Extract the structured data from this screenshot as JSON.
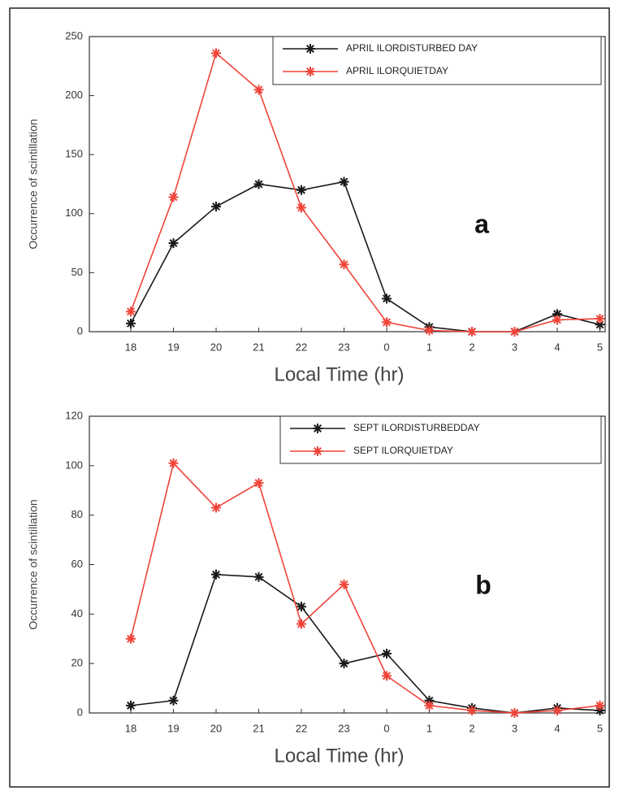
{
  "chart_data": [
    {
      "type": "line",
      "annotation": "a",
      "x_label": "Local Time (hr)",
      "y_label": "Occurrence of scintillation",
      "categories": [
        "18",
        "19",
        "20",
        "21",
        "22",
        "23",
        "0",
        "1",
        "2",
        "3",
        "4",
        "5"
      ],
      "ylim": [
        0,
        250
      ],
      "yticks": [
        0,
        50,
        100,
        150,
        200,
        250
      ],
      "legend": "upper right",
      "series": [
        {
          "name": "APRIL ILORDISTURBED DAY",
          "color": "#1a1a1a",
          "values": [
            7,
            75,
            106,
            125,
            120,
            127,
            28,
            4,
            0,
            0,
            15,
            6
          ]
        },
        {
          "name": "APRIL ILORQUIETDAY",
          "color": "#f0443a",
          "values": [
            17,
            114,
            236,
            205,
            105,
            57,
            8,
            1,
            0,
            0,
            10,
            11
          ]
        }
      ]
    },
    {
      "type": "line",
      "annotation": "b",
      "x_label": "Local Time (hr)",
      "y_label": "Occurrence of scintillation",
      "categories": [
        "18",
        "19",
        "20",
        "21",
        "22",
        "23",
        "0",
        "1",
        "2",
        "3",
        "4",
        "5"
      ],
      "ylim": [
        0,
        120
      ],
      "yticks": [
        0,
        20,
        40,
        60,
        80,
        100,
        120
      ],
      "legend": "upper right",
      "series": [
        {
          "name": "SEPT ILORDISTURBEDDAY",
          "color": "#1a1a1a",
          "values": [
            3,
            5,
            56,
            55,
            43,
            20,
            24,
            5,
            2,
            0,
            2,
            1
          ]
        },
        {
          "name": "SEPT ILORQUIETDAY",
          "color": "#f0443a",
          "values": [
            30,
            101,
            83,
            93,
            36,
            52,
            15,
            3,
            1,
            0,
            1,
            3
          ]
        }
      ]
    }
  ]
}
